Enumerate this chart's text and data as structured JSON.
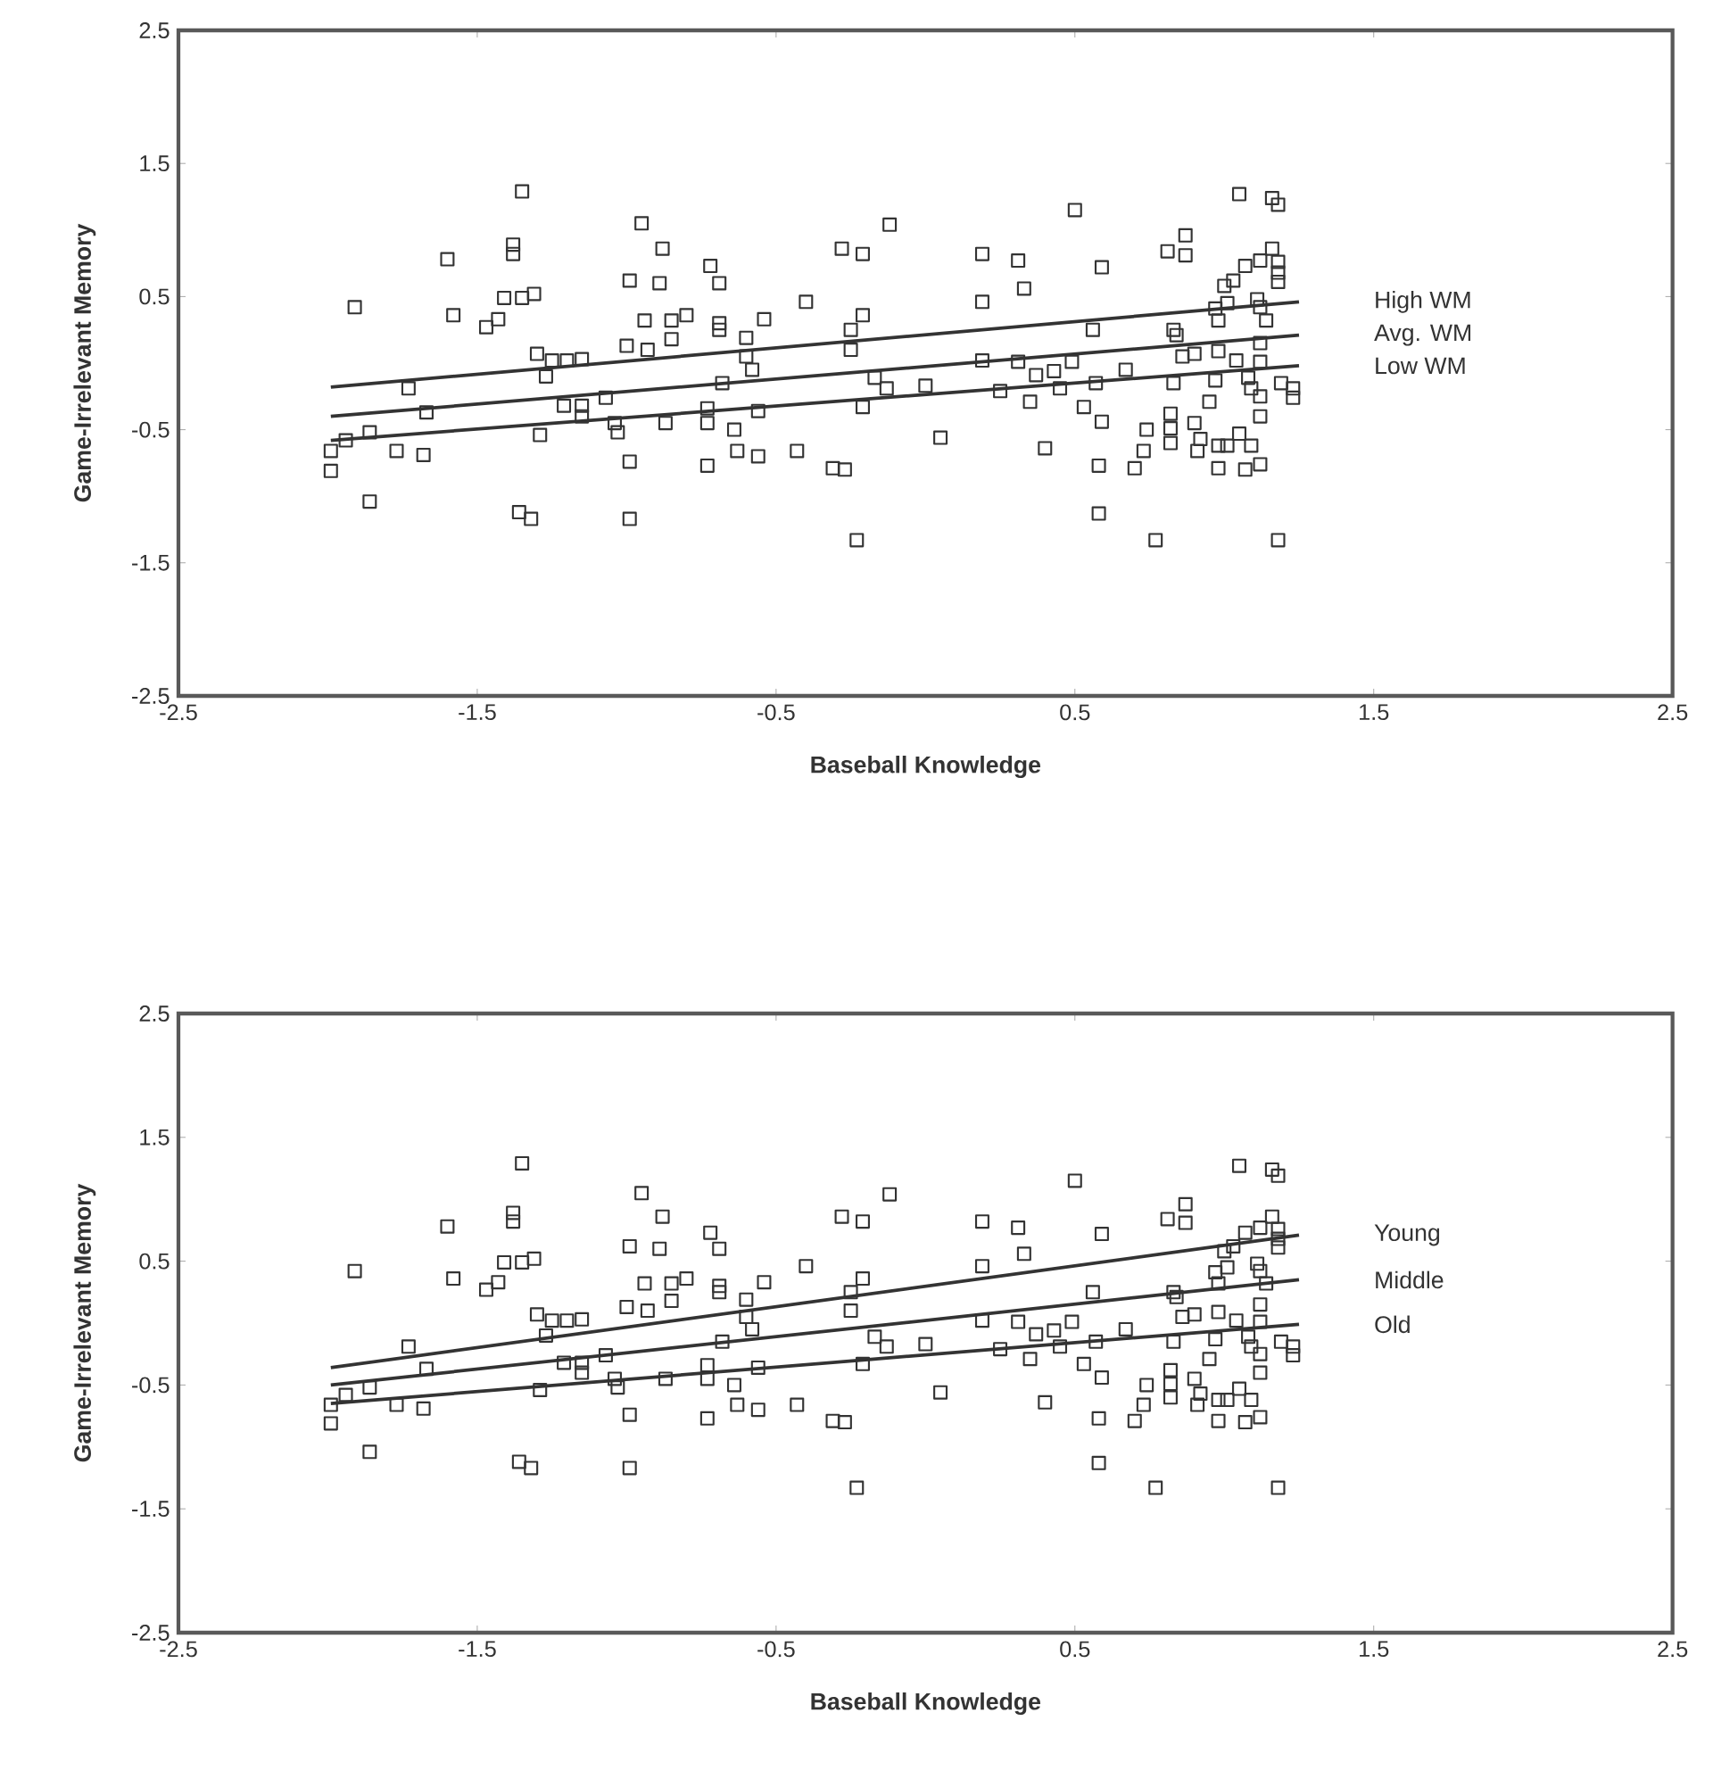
{
  "chart_data": [
    {
      "type": "scatter",
      "xlabel": "Baseball Knowledge",
      "ylabel": "Game-Irrelevant Memory",
      "xlim": [
        -2.5,
        2.5
      ],
      "ylim": [
        -2.5,
        2.5
      ],
      "xticks": [
        -2.5,
        -1.5,
        -0.5,
        0.5,
        1.5,
        2.5
      ],
      "yticks": [
        -2.5,
        -1.5,
        -0.5,
        0.5,
        1.5,
        2.5
      ],
      "grid": false,
      "series": [
        {
          "color": "#333333",
          "marker": "square",
          "x": [
            -1.35,
            -0.95,
            -0.88,
            -1.38,
            -1.38,
            -1.6,
            -0.99,
            -0.89,
            -1.91,
            -1.58,
            -1.41,
            -1.35,
            -1.31,
            -1.47,
            -1.43,
            -0.94,
            -0.85,
            -1.3,
            -1.25,
            -1.2,
            -1.15,
            -1.0,
            -0.93,
            -1.27,
            -1.73,
            -1.67,
            -1.21,
            -1.15,
            -1.15,
            -1.07,
            -1.04,
            -1.03,
            -0.87,
            -1.86,
            -1.94,
            -1.99,
            -1.29,
            -1.77,
            -1.68,
            -1.99,
            -0.99,
            -1.86,
            -1.36,
            -1.32,
            -0.99,
            -0.72,
            -0.69,
            -0.12,
            -0.28,
            -0.21,
            0.5,
            0.19,
            0.31,
            0.59,
            0.33,
            0.19,
            -0.4,
            -0.8,
            -0.85,
            -0.69,
            -0.69,
            -0.54,
            -0.6,
            -0.21,
            -0.25,
            -0.25,
            0.56,
            -0.6,
            -0.58,
            -0.68,
            0.19,
            0.31,
            0.49,
            -0.17,
            -0.13,
            0.0,
            0.25,
            0.37,
            0.43,
            0.45,
            0.35,
            0.57,
            0.67,
            0.53,
            0.59,
            0.74,
            -0.73,
            -0.73,
            -0.56,
            -0.21,
            -0.64,
            -0.63,
            -0.56,
            -0.43,
            0.05,
            0.4,
            -0.73,
            -0.31,
            -0.27,
            0.58,
            0.7,
            0.73,
            0.58,
            -0.23,
            0.77,
            1.05,
            1.16,
            1.18,
            0.87,
            0.81,
            0.87,
            1.16,
            1.18,
            1.18,
            1.18,
            1.12,
            1.07,
            1.03,
            1.0,
            1.01,
            1.11,
            1.12,
            0.97,
            0.98,
            1.14,
            0.83,
            0.84,
            1.12,
            0.86,
            0.9,
            0.98,
            1.04,
            1.12,
            0.83,
            0.97,
            1.08,
            1.09,
            1.12,
            1.19,
            1.23,
            1.23,
            0.95,
            1.12,
            0.82,
            0.82,
            0.82,
            0.9,
            0.92,
            0.98,
            1.01,
            1.05,
            1.09,
            0.91,
            0.98,
            1.07,
            1.12,
            1.18
          ],
          "values": [
            1.29,
            1.05,
            0.86,
            0.89,
            0.82,
            0.78,
            0.62,
            0.6,
            0.42,
            0.36,
            0.49,
            0.49,
            0.52,
            0.27,
            0.33,
            0.32,
            0.32,
            0.07,
            0.02,
            0.02,
            0.03,
            0.13,
            0.1,
            -0.1,
            -0.19,
            -0.37,
            -0.32,
            -0.32,
            -0.4,
            -0.26,
            -0.45,
            -0.52,
            -0.45,
            -0.52,
            -0.58,
            -0.66,
            -0.54,
            -0.66,
            -0.69,
            -0.81,
            -0.74,
            -1.04,
            -1.12,
            -1.17,
            -1.17,
            0.73,
            0.6,
            1.04,
            0.86,
            0.82,
            1.15,
            0.82,
            0.77,
            0.72,
            0.56,
            0.46,
            0.46,
            0.36,
            0.18,
            0.3,
            0.25,
            0.33,
            0.19,
            0.36,
            0.25,
            0.1,
            0.25,
            0.05,
            -0.05,
            -0.15,
            0.02,
            0.01,
            0.01,
            -0.11,
            -0.19,
            -0.17,
            -0.21,
            -0.09,
            -0.06,
            -0.19,
            -0.29,
            -0.15,
            -0.05,
            -0.33,
            -0.44,
            -0.5,
            -0.34,
            -0.45,
            -0.36,
            -0.33,
            -0.5,
            -0.66,
            -0.7,
            -0.66,
            -0.56,
            -0.64,
            -0.77,
            -0.79,
            -0.8,
            -0.77,
            -0.79,
            -0.66,
            -1.13,
            -1.33,
            -1.33,
            1.27,
            1.24,
            1.19,
            0.96,
            0.84,
            0.81,
            0.86,
            0.76,
            0.68,
            0.61,
            0.77,
            0.73,
            0.62,
            0.58,
            0.45,
            0.48,
            0.42,
            0.41,
            0.32,
            0.32,
            0.25,
            0.21,
            0.15,
            0.05,
            0.07,
            0.09,
            0.02,
            0.01,
            -0.15,
            -0.13,
            -0.11,
            -0.19,
            -0.25,
            -0.15,
            -0.19,
            -0.26,
            -0.29,
            -0.4,
            -0.38,
            -0.49,
            -0.6,
            -0.45,
            -0.57,
            -0.62,
            -0.62,
            -0.53,
            -0.62,
            -0.66,
            -0.79,
            -0.8,
            -0.76,
            -1.33
          ]
        },
        {
          "type": "line",
          "name": "High WM",
          "color": "#333333",
          "marker": "none",
          "line_style": "solid",
          "x": [
            -1.99,
            1.25
          ],
          "values": [
            -0.18,
            0.46
          ]
        },
        {
          "type": "line",
          "name": "Avg. WM",
          "color": "#333333",
          "marker": "none",
          "line_style": "solid",
          "x": [
            -1.99,
            1.25
          ],
          "values": [
            -0.4,
            0.21
          ]
        },
        {
          "type": "line",
          "name": "Low WM",
          "color": "#333333",
          "marker": "none",
          "line_style": "solid",
          "x": [
            -1.99,
            1.25
          ],
          "values": [
            -0.58,
            -0.02
          ]
        }
      ]
    },
    {
      "type": "scatter",
      "xlabel": "Baseball Knowledge",
      "ylabel": "Game-Irrelevant Memory",
      "xlim": [
        -2.5,
        2.5
      ],
      "ylim": [
        -2.5,
        2.5
      ],
      "xticks": [
        -2.5,
        -1.5,
        -0.5,
        0.5,
        1.5,
        2.5
      ],
      "yticks": [
        -2.5,
        -1.5,
        -0.5,
        0.5,
        1.5,
        2.5
      ],
      "grid": false,
      "series": [
        {
          "color": "#333333",
          "marker": "square",
          "x": [
            -1.35,
            -0.95,
            -0.88,
            -1.38,
            -1.38,
            -1.6,
            -0.99,
            -0.89,
            -1.91,
            -1.58,
            -1.41,
            -1.35,
            -1.31,
            -1.47,
            -1.43,
            -0.94,
            -0.85,
            -1.3,
            -1.25,
            -1.2,
            -1.15,
            -1.0,
            -0.93,
            -1.27,
            -1.73,
            -1.67,
            -1.21,
            -1.15,
            -1.15,
            -1.07,
            -1.04,
            -1.03,
            -0.87,
            -1.86,
            -1.94,
            -1.99,
            -1.29,
            -1.77,
            -1.68,
            -1.99,
            -0.99,
            -1.86,
            -1.36,
            -1.32,
            -0.99,
            -0.72,
            -0.69,
            -0.12,
            -0.28,
            -0.21,
            0.5,
            0.19,
            0.31,
            0.59,
            0.33,
            0.19,
            -0.4,
            -0.8,
            -0.85,
            -0.69,
            -0.69,
            -0.54,
            -0.6,
            -0.21,
            -0.25,
            -0.25,
            0.56,
            -0.6,
            -0.58,
            -0.68,
            0.19,
            0.31,
            0.49,
            -0.17,
            -0.13,
            0.0,
            0.25,
            0.37,
            0.43,
            0.45,
            0.35,
            0.57,
            0.67,
            0.53,
            0.59,
            0.74,
            -0.73,
            -0.73,
            -0.56,
            -0.21,
            -0.64,
            -0.63,
            -0.56,
            -0.43,
            0.05,
            0.4,
            -0.73,
            -0.31,
            -0.27,
            0.58,
            0.7,
            0.73,
            0.58,
            -0.23,
            0.77,
            1.05,
            1.16,
            1.18,
            0.87,
            0.81,
            0.87,
            1.16,
            1.18,
            1.18,
            1.18,
            1.12,
            1.07,
            1.03,
            1.0,
            1.01,
            1.11,
            1.12,
            0.97,
            0.98,
            1.14,
            0.83,
            0.84,
            1.12,
            0.86,
            0.9,
            0.98,
            1.04,
            1.12,
            0.83,
            0.97,
            1.08,
            1.09,
            1.12,
            1.19,
            1.23,
            1.23,
            0.95,
            1.12,
            0.82,
            0.82,
            0.82,
            0.9,
            0.92,
            0.98,
            1.01,
            1.05,
            1.09,
            0.91,
            0.98,
            1.07,
            1.12,
            1.18
          ],
          "values": [
            1.29,
            1.05,
            0.86,
            0.89,
            0.82,
            0.78,
            0.62,
            0.6,
            0.42,
            0.36,
            0.49,
            0.49,
            0.52,
            0.27,
            0.33,
            0.32,
            0.32,
            0.07,
            0.02,
            0.02,
            0.03,
            0.13,
            0.1,
            -0.1,
            -0.19,
            -0.37,
            -0.32,
            -0.32,
            -0.4,
            -0.26,
            -0.45,
            -0.52,
            -0.45,
            -0.52,
            -0.58,
            -0.66,
            -0.54,
            -0.66,
            -0.69,
            -0.81,
            -0.74,
            -1.04,
            -1.12,
            -1.17,
            -1.17,
            0.73,
            0.6,
            1.04,
            0.86,
            0.82,
            1.15,
            0.82,
            0.77,
            0.72,
            0.56,
            0.46,
            0.46,
            0.36,
            0.18,
            0.3,
            0.25,
            0.33,
            0.19,
            0.36,
            0.25,
            0.1,
            0.25,
            0.05,
            -0.05,
            -0.15,
            0.02,
            0.01,
            0.01,
            -0.11,
            -0.19,
            -0.17,
            -0.21,
            -0.09,
            -0.06,
            -0.19,
            -0.29,
            -0.15,
            -0.05,
            -0.33,
            -0.44,
            -0.5,
            -0.34,
            -0.45,
            -0.36,
            -0.33,
            -0.5,
            -0.66,
            -0.7,
            -0.66,
            -0.56,
            -0.64,
            -0.77,
            -0.79,
            -0.8,
            -0.77,
            -0.79,
            -0.66,
            -1.13,
            -1.33,
            -1.33,
            1.27,
            1.24,
            1.19,
            0.96,
            0.84,
            0.81,
            0.86,
            0.76,
            0.68,
            0.61,
            0.77,
            0.73,
            0.62,
            0.58,
            0.45,
            0.48,
            0.42,
            0.41,
            0.32,
            0.32,
            0.25,
            0.21,
            0.15,
            0.05,
            0.07,
            0.09,
            0.02,
            0.01,
            -0.15,
            -0.13,
            -0.11,
            -0.19,
            -0.25,
            -0.15,
            -0.19,
            -0.26,
            -0.29,
            -0.4,
            -0.38,
            -0.49,
            -0.6,
            -0.45,
            -0.57,
            -0.62,
            -0.62,
            -0.53,
            -0.62,
            -0.66,
            -0.79,
            -0.8,
            -0.76,
            -1.33
          ]
        },
        {
          "type": "line",
          "name": "Young",
          "color": "#333333",
          "marker": "none",
          "line_style": "solid",
          "x": [
            -1.99,
            1.25
          ],
          "values": [
            -0.36,
            0.71
          ]
        },
        {
          "type": "line",
          "name": "Middle",
          "color": "#333333",
          "marker": "none",
          "line_style": "solid",
          "x": [
            -1.99,
            1.25
          ],
          "values": [
            -0.5,
            0.35
          ]
        },
        {
          "type": "line",
          "name": "Old",
          "color": "#333333",
          "marker": "none",
          "line_style": "solid",
          "x": [
            -1.99,
            1.25
          ],
          "values": [
            -0.65,
            -0.01
          ]
        }
      ]
    }
  ]
}
